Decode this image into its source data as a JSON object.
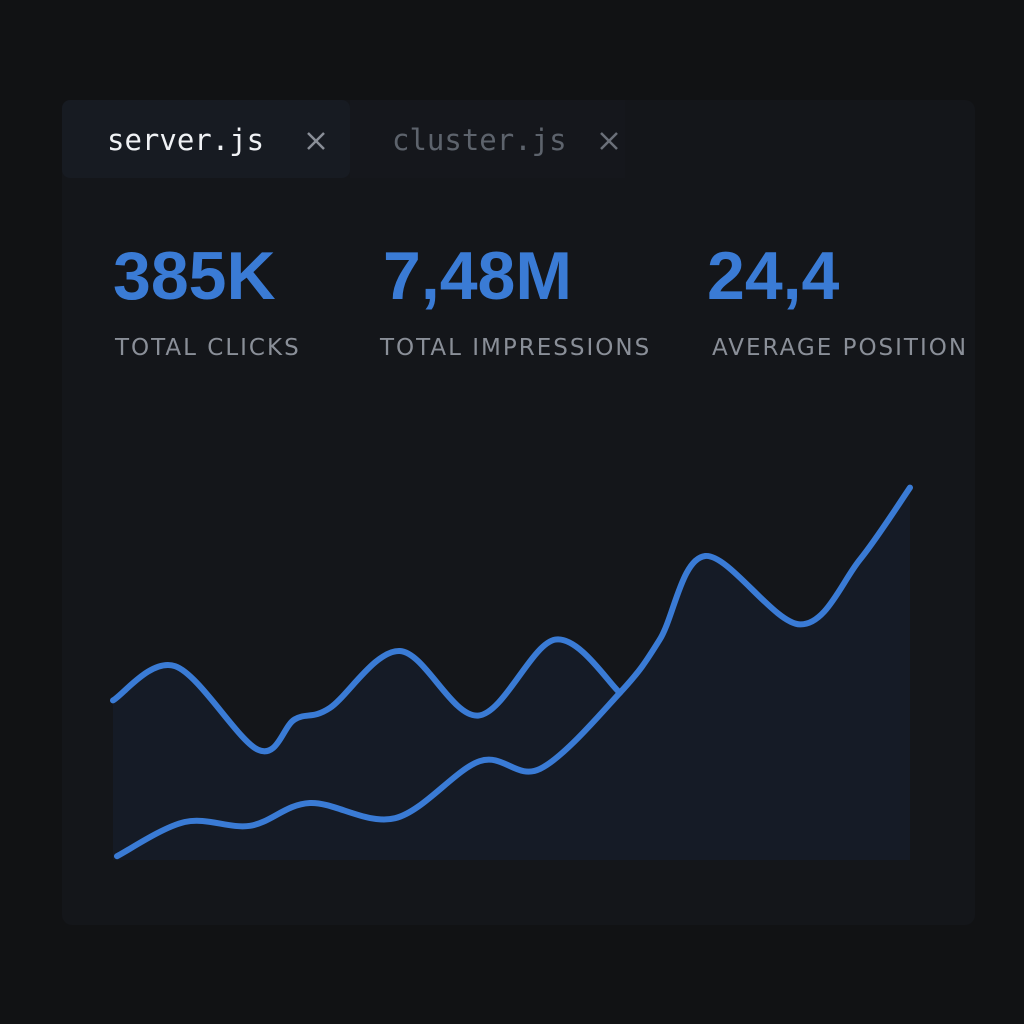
{
  "tabs": [
    {
      "label": "server.js"
    },
    {
      "label": "cluster.js"
    }
  ],
  "stats": [
    {
      "value": "385K",
      "label": "TOTAL CLICKS"
    },
    {
      "value": "7,48M",
      "label": "TOTAL IMPRESSIONS"
    },
    {
      "value": "24,4",
      "label": "AVERAGE POSITION"
    }
  ],
  "chart_data": {
    "type": "line",
    "xlim": [
      0,
      100
    ],
    "ylim": [
      0,
      100
    ],
    "series": [
      {
        "color": "#3a7bd5",
        "x": [
          0,
          7.8,
          18.2,
          22.8,
          27.2,
          36,
          45.8,
          55.5,
          63.6
        ],
        "values": [
          42,
          51,
          29,
          37,
          40,
          55,
          38,
          58,
          44
        ]
      },
      {
        "color": "#3a7bd5",
        "x": [
          0.5,
          9,
          17.2,
          24.7,
          35.4,
          46,
          53.6,
          63.6,
          68.6,
          74.3,
          86.2,
          93.7,
          100
        ],
        "values": [
          1,
          10,
          9,
          15,
          11,
          26,
          24,
          44,
          58,
          80,
          62,
          79,
          98
        ]
      }
    ]
  }
}
